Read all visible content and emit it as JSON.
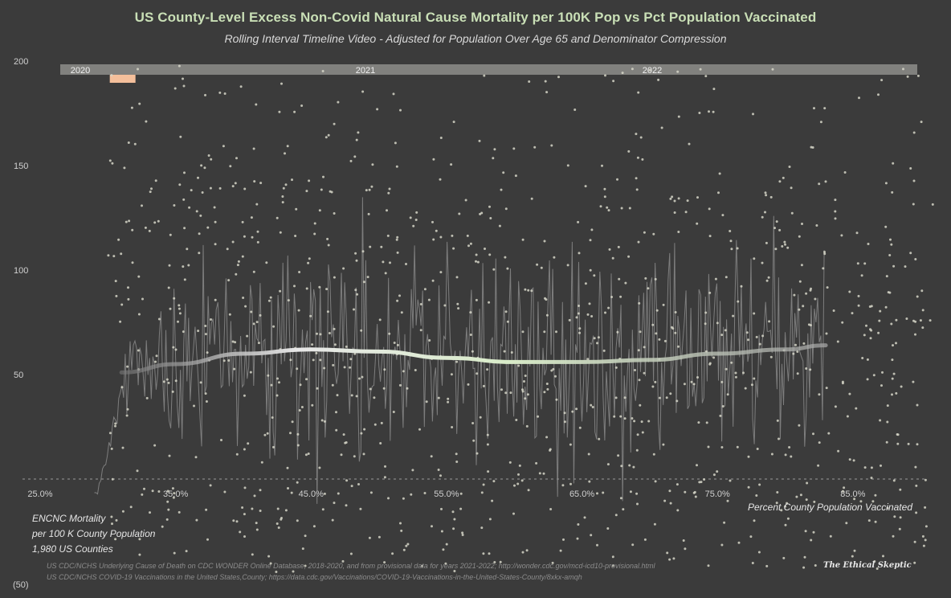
{
  "chart_data": {
    "type": "scatter",
    "title": "US County-Level Excess Non-Covid Natural Cause Mortality per 100K Pop vs Pct Population Vaccinated",
    "subtitle": "Rolling Interval Timeline Video - Adjusted for Population Over Age 65 and Denominator Compression",
    "xlabel": "Percent County Population Vaccinated",
    "ylabel_lines": [
      "ENCNC Mortality",
      "per 100 K County Population",
      "1,980 US Counties"
    ],
    "x_ticks": [
      "25.0%",
      "35.0%",
      "45.0%",
      "55.0%",
      "65.0%",
      "75.0%",
      "85.0%"
    ],
    "x_tick_values": [
      25,
      35,
      45,
      55,
      65,
      75,
      85
    ],
    "y_ticks": [
      "200",
      "150",
      "100",
      "50"
    ],
    "y_tick_values": [
      200,
      150,
      100,
      50
    ],
    "y_min_label": "(50)",
    "xlim": [
      25,
      91
    ],
    "ylim": [
      -50,
      200
    ],
    "timeline": {
      "labels": [
        "2020",
        "2021",
        "2022"
      ],
      "progress": 0.04
    },
    "trend_line": {
      "x": [
        31,
        35,
        40,
        45,
        50,
        55,
        60,
        65,
        70,
        75,
        80,
        83
      ],
      "y": [
        51,
        55,
        60,
        62,
        61,
        58,
        56,
        56,
        57,
        60,
        62,
        64
      ]
    },
    "colors": {
      "background": "#3b3b3b",
      "points": "#d6d6c8",
      "trend": "#d9ecc9",
      "title": "#c9dfb6",
      "timeline_bar": "#8a8a86",
      "timeline_marker": "#f4bf9b"
    }
  },
  "sources": [
    "US CDC/NCHS Underlying Cause of Death on CDC WONDER Online Database, 2018-2020, and from provisional data for years 2021-2022; http://wonder.cdc.gov/mcd-icd10-provisional.html",
    "US CDC/NCHS COVID-19 Vaccinations in the United States,County; https://data.cdc.gov/Vaccinations/COVID-19-Vaccinations-in-the-United-States-County/8xkx-amqh"
  ],
  "brand": "The Ethical Skeptic"
}
